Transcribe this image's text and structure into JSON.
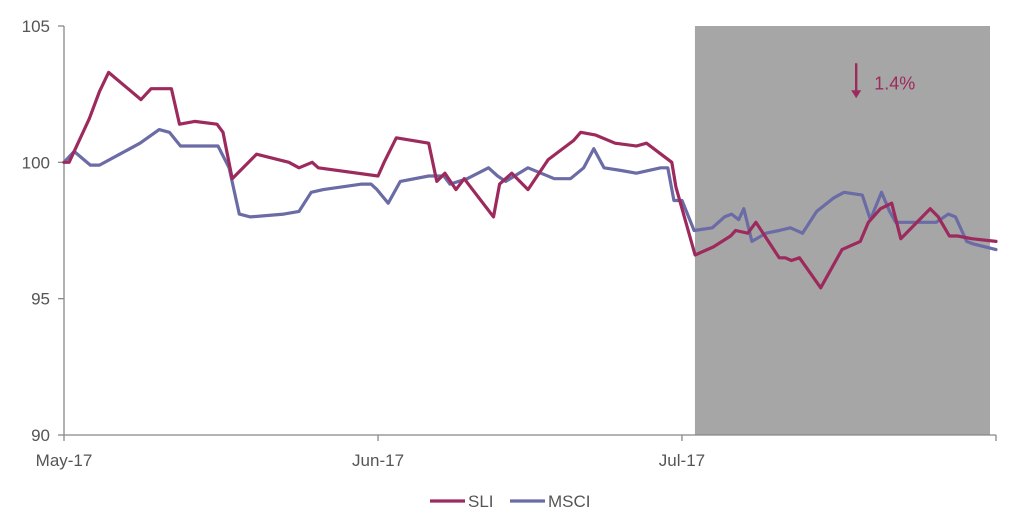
{
  "chart_data": {
    "type": "line",
    "ylim": [
      90,
      105
    ],
    "yticks": [
      90,
      95,
      100,
      105
    ],
    "ytick_labels": [
      "90",
      "95",
      "100",
      "105"
    ],
    "x_range_days": [
      0,
      92
    ],
    "xticks": [
      {
        "label": "May-17",
        "day": 0
      },
      {
        "label": "Jun-17",
        "day": 31
      },
      {
        "label": "Jul-17",
        "day": 61
      }
    ],
    "grid": false,
    "legend_position": "bottom-center",
    "highlight": {
      "from_day": 61,
      "to_day": 92,
      "color": "#a6a6a6"
    },
    "annotation": {
      "text": "1.4%",
      "day": 78.2,
      "y": 102.9,
      "arrow": "down",
      "color": "#9c2a5c"
    },
    "series": [
      {
        "name": "SLI",
        "color": "#9c2a5c",
        "x": [
          0,
          0.5,
          2.5,
          3.5,
          4.4,
          7.6,
          8.6,
          10.6,
          11.4,
          12.9,
          15.1,
          15.7,
          16.6,
          19.0,
          22.2,
          23.2,
          24.5,
          25.1,
          31.0,
          31.6,
          32.8,
          36.0,
          36.8,
          37.6,
          38.7,
          39.5,
          42.4,
          43.0,
          44.2,
          45.8,
          47.8,
          50.3,
          51.0,
          52.5,
          54.4,
          56.5,
          57.5,
          60.0,
          60.4,
          62.3,
          64.1,
          65.8,
          66.3,
          67.5,
          68.3,
          70.6,
          71.2,
          71.8,
          72.6,
          74.7,
          76.8,
          78.6,
          79.4,
          80.6,
          81.7,
          82.6,
          85.5,
          86.3,
          87.4,
          88.2,
          89.6,
          92.0
        ],
        "values": [
          100.0,
          100.0,
          101.6,
          102.6,
          103.3,
          102.3,
          102.7,
          102.7,
          101.4,
          101.5,
          101.4,
          101.1,
          99.4,
          100.3,
          100.0,
          99.8,
          100.0,
          99.8,
          99.5,
          100.0,
          100.9,
          100.7,
          99.3,
          99.6,
          99.0,
          99.4,
          98.0,
          99.2,
          99.6,
          99.0,
          100.1,
          100.8,
          101.1,
          101.0,
          100.7,
          100.6,
          100.7,
          100.0,
          99.1,
          96.6,
          96.9,
          97.3,
          97.5,
          97.4,
          97.8,
          96.5,
          96.5,
          96.4,
          96.5,
          95.4,
          96.8,
          97.1,
          97.8,
          98.3,
          98.5,
          97.2,
          98.3,
          98.0,
          97.3,
          97.3,
          97.2,
          97.1
        ]
      },
      {
        "name": "MSCI",
        "color": "#6b6ba6",
        "x": [
          0,
          1.0,
          2.6,
          3.5,
          5.5,
          7.5,
          9.4,
          10.4,
          11.5,
          14.6,
          15.2,
          16.3,
          17.3,
          18.4,
          21.7,
          23.2,
          24.4,
          25.6,
          29.4,
          30.3,
          30.9,
          32.0,
          33.2,
          36.0,
          36.7,
          37.5,
          38.1,
          39.8,
          41.9,
          42.8,
          43.6,
          45.8,
          48.4,
          50.0,
          51.3,
          52.3,
          53.3,
          55.0,
          56.5,
          58.9,
          59.6,
          60.2,
          61.0,
          62.2,
          64.0,
          65.2,
          65.9,
          66.6,
          67.1,
          67.9,
          69.3,
          70.6,
          71.7,
          72.9,
          74.3,
          76.0,
          77.0,
          78.8,
          79.6,
          80.7,
          81.5,
          82.1,
          82.6,
          83.5,
          84.9,
          86.1,
          87.3,
          88.0,
          89.1,
          89.8,
          92.0
        ]
      },
      {
        "_placeholder": "",
        "values_msci": [
          100.0,
          100.4,
          99.9,
          99.9,
          100.3,
          100.7,
          101.2,
          101.1,
          100.6,
          100.6,
          100.6,
          99.8,
          98.1,
          98.0,
          98.1,
          98.2,
          98.9,
          99.0,
          99.2,
          99.2,
          99.0,
          98.5,
          99.3,
          99.5,
          99.5,
          99.5,
          99.2,
          99.4,
          99.8,
          99.5,
          99.3,
          99.8,
          99.4,
          99.4,
          99.8,
          100.5,
          99.8,
          99.7,
          99.6,
          99.8,
          99.8,
          98.6,
          98.6,
          97.5,
          97.6,
          98.0,
          98.1,
          97.9,
          98.3,
          97.1,
          97.4,
          97.5,
          97.6,
          97.4,
          98.2,
          98.7,
          98.9,
          98.8,
          97.9,
          98.9,
          98.2,
          97.8,
          97.8,
          97.8,
          97.8,
          97.8,
          98.1,
          98.0,
          97.1,
          97.0,
          96.8
        ]
      }
    ]
  }
}
